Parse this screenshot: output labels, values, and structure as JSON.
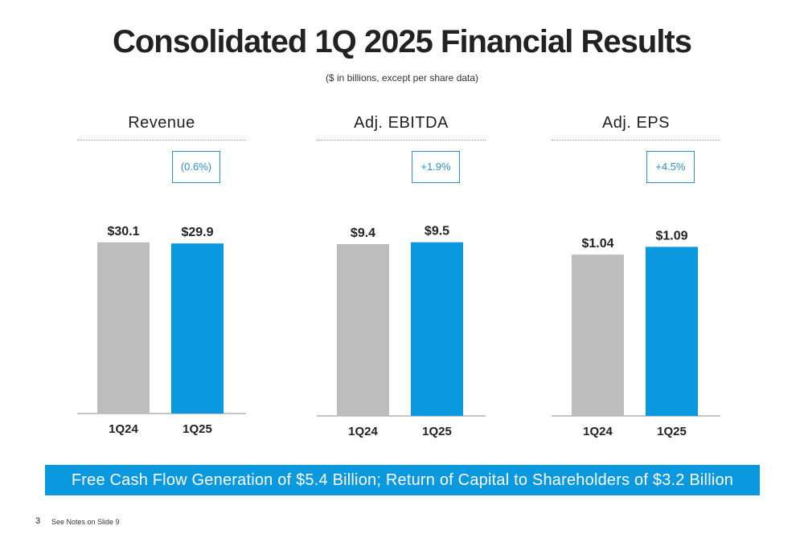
{
  "header": {
    "title": "Consolidated 1Q 2025 Financial Results",
    "subtitle": "($ in billions, except per share data)"
  },
  "colors": {
    "prior_bar": "#bdbdbd",
    "current_bar": "#0a99de",
    "change_box": "#2a8fd0",
    "banner": "#0a99de"
  },
  "chart_data": [
    {
      "type": "bar",
      "title": "Revenue",
      "categories": [
        "1Q24",
        "1Q25"
      ],
      "values": [
        30.1,
        29.9
      ],
      "value_labels": [
        "$30.1",
        "$29.9"
      ],
      "change": "(0.6%)",
      "ylim": [
        0,
        36
      ]
    },
    {
      "type": "bar",
      "title": "Adj. EBITDA",
      "categories": [
        "1Q24",
        "1Q25"
      ],
      "values": [
        9.4,
        9.5
      ],
      "value_labels": [
        "$9.4",
        "$9.5"
      ],
      "change": "+1.9%",
      "ylim": [
        0,
        11.2
      ]
    },
    {
      "type": "bar",
      "title": "Adj. EPS",
      "categories": [
        "1Q24",
        "1Q25"
      ],
      "values": [
        1.04,
        1.09
      ],
      "value_labels": [
        "$1.04",
        "$1.09"
      ],
      "change": "+4.5%",
      "ylim": [
        0,
        1.32
      ]
    }
  ],
  "banner": {
    "text": "Free Cash Flow Generation of $5.4 Billion; Return of Capital to Shareholders of $3.2 Billion"
  },
  "footer": {
    "page_number": "3",
    "note": "See Notes on Slide 9"
  }
}
